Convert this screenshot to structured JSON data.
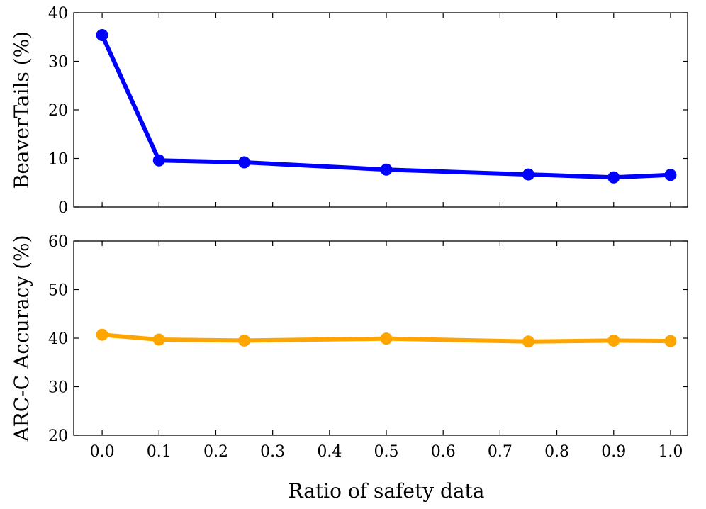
{
  "chart_data": {
    "type": "line",
    "shared_x": {
      "xlabel": "Ratio of safety data",
      "xlim": [
        -0.05,
        1.03
      ],
      "ticks": [
        0.0,
        0.1,
        0.2,
        0.3,
        0.4,
        0.5,
        0.6,
        0.7,
        0.8,
        0.9,
        1.0
      ],
      "tick_labels": [
        "0.0",
        "0.1",
        "0.2",
        "0.3",
        "0.4",
        "0.5",
        "0.6",
        "0.7",
        "0.8",
        "0.9",
        "1.0"
      ]
    },
    "panels": [
      {
        "name": "beavertails",
        "ylabel": "BeaverTails (%)",
        "ylim": [
          0,
          40
        ],
        "yticks": [
          0,
          10,
          20,
          30,
          40
        ],
        "ytick_labels": [
          "0",
          "10",
          "20",
          "30",
          "40"
        ],
        "series": [
          {
            "name": "BeaverTails",
            "color": "#0000ff",
            "x": [
              0.0,
              0.1,
              0.25,
              0.5,
              0.75,
              0.9,
              1.0
            ],
            "values": [
              35.4,
              9.6,
              9.2,
              7.7,
              6.7,
              6.1,
              6.6
            ]
          }
        ]
      },
      {
        "name": "arc-c",
        "ylabel": "ARC-C Accuracy (%)",
        "ylim": [
          20,
          60
        ],
        "yticks": [
          20,
          30,
          40,
          50,
          60
        ],
        "ytick_labels": [
          "20",
          "30",
          "40",
          "50",
          "60"
        ],
        "series": [
          {
            "name": "ARC-C Accuracy",
            "color": "#ffa500",
            "x": [
              0.0,
              0.1,
              0.25,
              0.5,
              0.75,
              0.9,
              1.0
            ],
            "values": [
              40.7,
              39.7,
              39.5,
              39.9,
              39.3,
              39.5,
              39.4
            ]
          }
        ]
      }
    ]
  }
}
